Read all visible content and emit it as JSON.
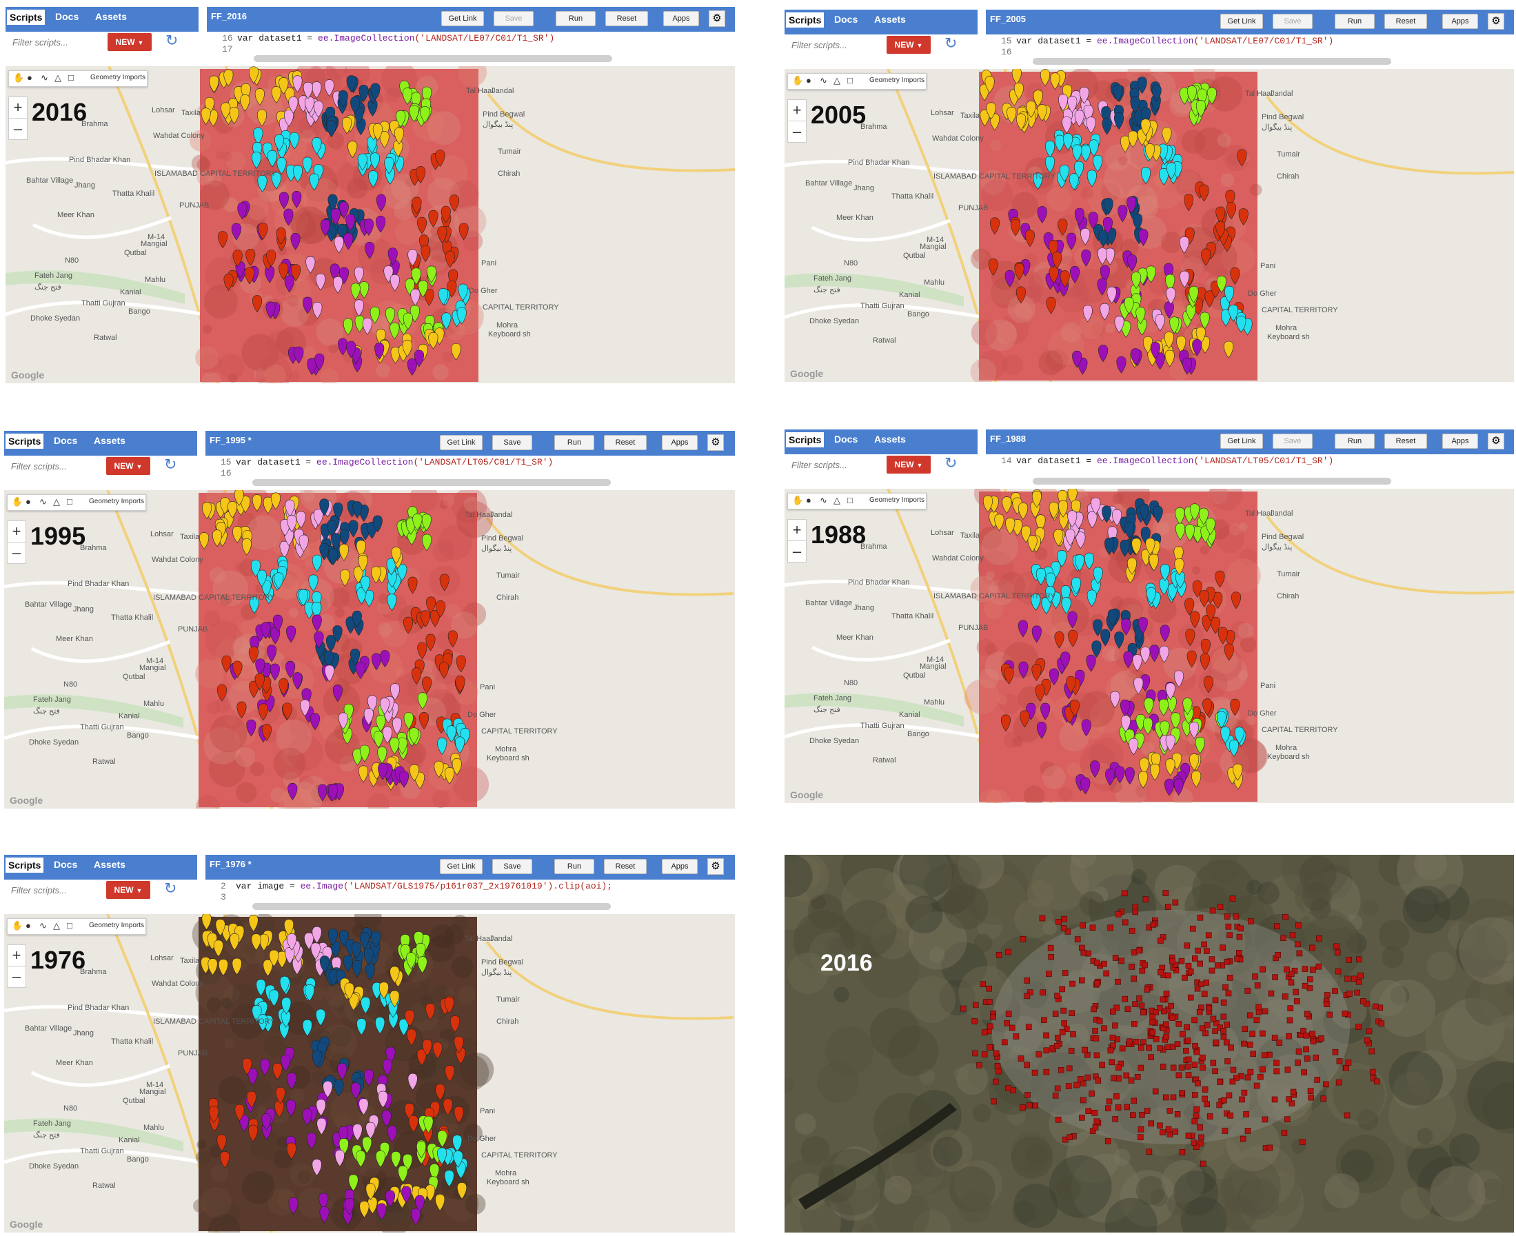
{
  "common": {
    "tabs": [
      "Scripts",
      "Docs",
      "Assets"
    ],
    "filter_placeholder": "Filter scripts...",
    "new_label": "NEW",
    "geometry_imports": "Geometry Imports",
    "buttons": [
      "Get Link",
      "Save",
      "Run",
      "Reset",
      "Apps"
    ],
    "google_logo": "Google",
    "icons": [
      "hand-icon",
      "marker-icon",
      "polyline-icon",
      "polygon-icon",
      "rectangle-icon",
      "refresh-icon",
      "gear-icon"
    ],
    "colors": {
      "header_blue": "#4a7fcf",
      "new_red": "#d0382c",
      "landsat_pink": "#d9605f",
      "marker_yellow": "#f5c518",
      "marker_navy": "#12497d",
      "marker_cyan": "#22e0ee",
      "marker_lime": "#8ef21a",
      "marker_purple": "#9d10b8",
      "marker_pink": "#f2a6e6",
      "marker_red": "#d8320c"
    }
  },
  "places": {
    "left": [
      "Taxila",
      "Wahdat Colony",
      "Pind Bhadar Khan",
      "Bahtar Village",
      "Jhang",
      "Thatta Khalil",
      "Meer Khan",
      "Mangial",
      "Qutbal",
      "Fateh Jang",
      "فتح جنگ",
      "Mahlu",
      "Kanial",
      "Thatti Gujran",
      "Bango",
      "Dhoke Syedan",
      "Ratwal",
      "Lohsar",
      "Brahma",
      "ISLAMABAD CAPITAL TERRITORY",
      "PUNJAB",
      "M-14",
      "N80"
    ],
    "right": [
      "Jandal",
      "Pind Begwal",
      "پنڈ بیگوال",
      "Tumair",
      "Chirah",
      "Pani",
      "Do Gher",
      "Mohra",
      "Keyboard sh",
      "Tal Haal",
      "CAPITAL TERRITORY"
    ]
  },
  "panels": [
    {
      "year": "2016",
      "script_name": "FF_2016",
      "save_enabled": false,
      "code_lines": [
        {
          "ln": "16",
          "pre": "var dataset1 = ",
          "kw": "ee.ImageCollection",
          "str": "('LANDSAT/LE07/C01/T1_SR')"
        },
        {
          "ln": "17",
          "pre": "",
          "kw": "",
          "str": ""
        }
      ],
      "base": "landsat"
    },
    {
      "year": "2005",
      "script_name": "FF_2005",
      "save_enabled": false,
      "code_lines": [
        {
          "ln": "15",
          "pre": "var dataset1 = ",
          "kw": "ee.ImageCollection",
          "str": "('LANDSAT/LE07/C01/T1_SR')"
        },
        {
          "ln": "16",
          "pre": "",
          "kw": "",
          "str": ""
        }
      ],
      "base": "landsat"
    },
    {
      "year": "1995",
      "script_name": "FF_1995 *",
      "save_enabled": true,
      "code_lines": [
        {
          "ln": "15",
          "pre": "var dataset1 = ",
          "kw": "ee.ImageCollection",
          "str": "('LANDSAT/LT05/C01/T1_SR')"
        },
        {
          "ln": "16",
          "pre": "",
          "kw": "",
          "str": ""
        }
      ],
      "base": "landsat"
    },
    {
      "year": "1988",
      "script_name": "FF_1988",
      "save_enabled": false,
      "code_lines": [
        {
          "ln": "14",
          "pre": "var dataset1 = ",
          "kw": "ee.ImageCollection",
          "str": "('LANDSAT/LT05/C01/T1_SR')"
        }
      ],
      "base": "landsat"
    },
    {
      "year": "1976",
      "script_name": "FF_1976 *",
      "save_enabled": true,
      "code_lines": [
        {
          "ln": "2",
          "pre": "var image = ",
          "kw": "ee.Image",
          "str": "('LANDSAT/GLS1975/p161r037_2x19761019').clip(aoi);"
        },
        {
          "ln": "3",
          "pre": "",
          "kw": "",
          "str": ""
        }
      ],
      "base": "mss"
    }
  ],
  "satellite_panel": {
    "year": "2016"
  }
}
